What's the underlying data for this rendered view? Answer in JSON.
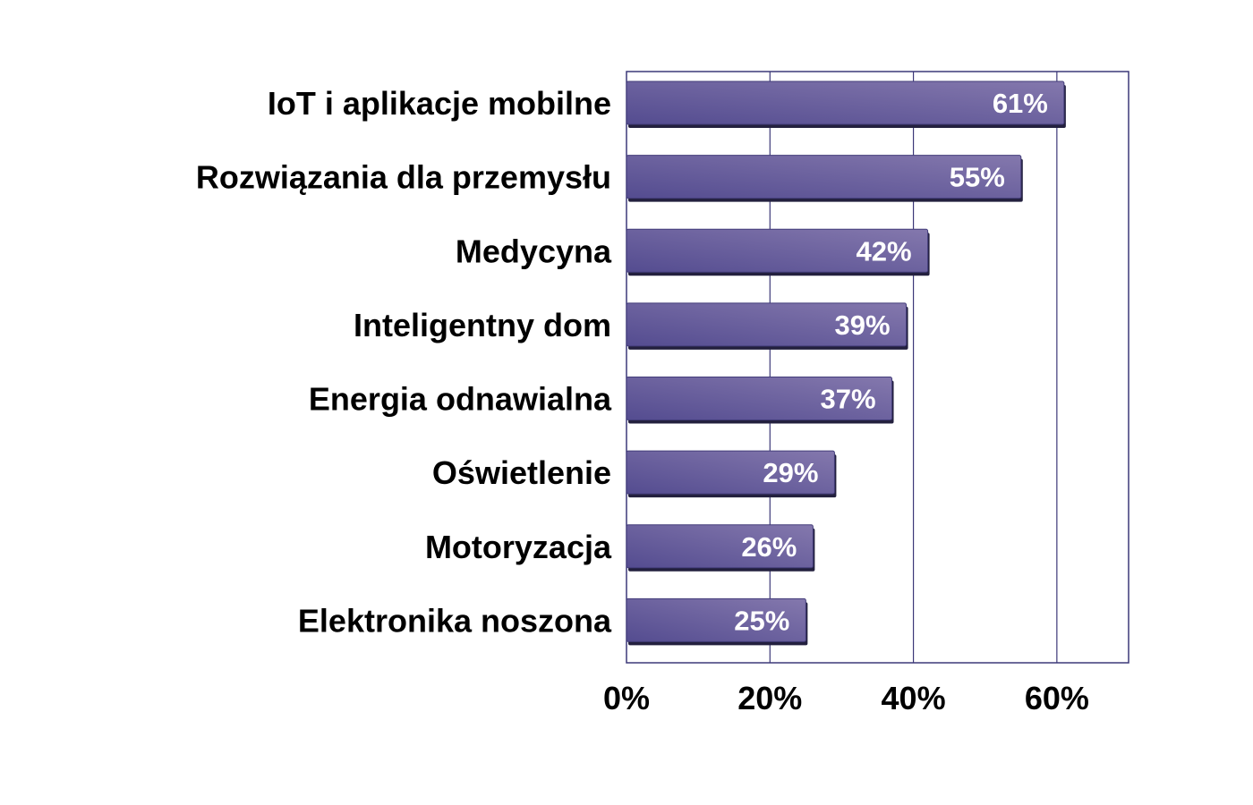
{
  "chart_data": {
    "type": "bar",
    "orientation": "horizontal",
    "categories": [
      "IoT i aplikacje mobilne",
      "Rozwiązania dla przemysłu",
      "Medycyna",
      "Inteligentny dom",
      "Energia odnawialna",
      "Oświetlenie",
      "Motoryzacja",
      "Elektronika noszona"
    ],
    "values": [
      61,
      55,
      42,
      39,
      37,
      29,
      26,
      25
    ],
    "value_labels": [
      "61%",
      "55%",
      "42%",
      "39%",
      "37%",
      "29%",
      "26%",
      "25%"
    ],
    "x_ticks": [
      "0%",
      "20%",
      "40%",
      "60%"
    ],
    "x_tick_values": [
      0,
      20,
      40,
      60
    ],
    "xlim": [
      0,
      70
    ],
    "grid": true,
    "legend": "none",
    "colors": {
      "bar_light": "#8478ad",
      "bar_dark": "#544c90",
      "bar_shadow": "#23203e",
      "grid": "#3c3878",
      "frame": "#3c3878"
    }
  }
}
